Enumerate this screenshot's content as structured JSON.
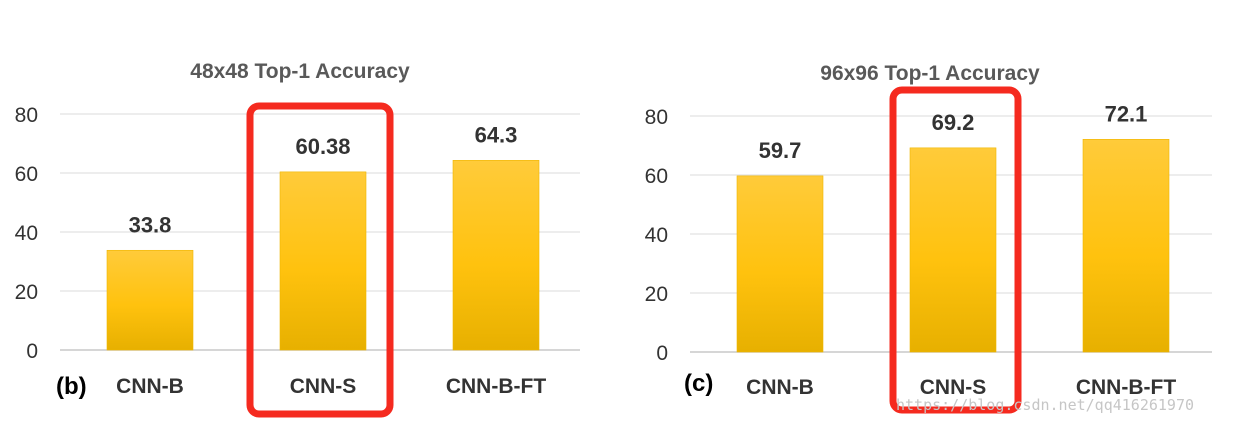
{
  "chart_data": [
    {
      "type": "bar",
      "title": "48x48 Top-1 Accuracy",
      "panel_label": "(b)",
      "categories": [
        "CNN-B",
        "CNN-S",
        "CNN-B-FT"
      ],
      "values": [
        33.8,
        60.38,
        64.3
      ],
      "value_labels": [
        "33.8",
        "60.38",
        "64.3"
      ],
      "yticks": [
        "0",
        "20",
        "40",
        "60",
        "80"
      ],
      "ylim": [
        0,
        80
      ],
      "xlabel": "",
      "ylabel": "",
      "grid": true,
      "highlighted_category": "CNN-S",
      "bar_color": "#ffc20e",
      "highlight_color": "#f52a1f"
    },
    {
      "type": "bar",
      "title": "96x96 Top-1 Accuracy",
      "panel_label": "(c)",
      "categories": [
        "CNN-B",
        "CNN-S",
        "CNN-B-FT"
      ],
      "values": [
        59.7,
        69.2,
        72.1
      ],
      "value_labels": [
        "59.7",
        "69.2",
        "72.1"
      ],
      "yticks": [
        "0",
        "20",
        "40",
        "60",
        "80"
      ],
      "ylim": [
        0,
        80
      ],
      "xlabel": "",
      "ylabel": "",
      "grid": true,
      "highlighted_category": "CNN-S",
      "bar_color": "#ffc20e",
      "highlight_color": "#f52a1f"
    }
  ],
  "watermark": "https://blog.csdn.net/qq416261970"
}
